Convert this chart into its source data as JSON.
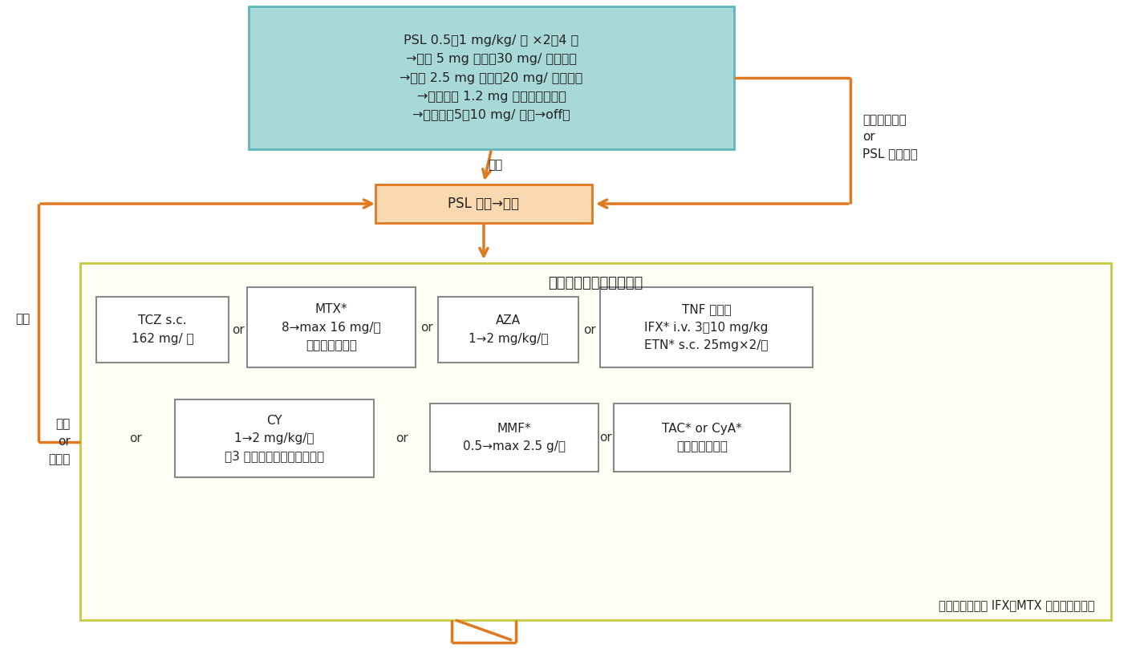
{
  "fig_width": 14.21,
  "fig_height": 8.34,
  "bg_color": "#ffffff",
  "orange": "#E07820",
  "teal_bg": "#A8D8D8",
  "teal_border": "#5BB8B8",
  "orange_box_bg": "#FAD8B0",
  "orange_box_border": "#E07820",
  "yellow_bg": "#FFFFF0",
  "yellow_border": "#E0E080",
  "white_box_bg": "#FFFFFF",
  "white_box_border": "#888888",
  "top_box_text": "PSL 0.5〜1 mg/kg/ 日 ×2〜4 週\n→毎週 5 mg 減量（30 mg/ 日まで）\n→毎週 2.5 mg 減量（20 mg/ 日まで）\n→月当たり 1.2 mg をこえない減量\n→維持量：5〜10 mg/ 日（→off）",
  "mid_box_text": "PSL 増量→漸減",
  "label_sainen_top": "再燃",
  "label_sainen_left": "再燃",
  "label_kansen": "寛解導入困難\nor\nPSL 減量困難",
  "label_mukou": "無効\nor\n副作用",
  "bottom_title": "いずれかをＰＳＬと併用",
  "box1_text": "TCZ s.c.\n162 mg/ 週",
  "box2_text": "MTX*\n8→max 16 mg/週\n（葉酸を併用）",
  "box3_text": "AZA\n1→2 mg/kg/日",
  "box4_text": "TNF 阻害薬\nIFX* i.v. 3〜10 mg/kg\nETN* s.c. 25mg×2/週",
  "box5_text": "CY\n1→2 mg/kg/日\n（3 カ月で他剤に切り替え）",
  "box6_text": "MMF*\n0.5→max 2.5 g/日",
  "box7_text": "TAC* or CyA*\n血中濃度で調節",
  "bottom_note": "（このなかでも IFX＋MTX などの併用可）",
  "or_color": "#333333",
  "text_color": "#222222"
}
